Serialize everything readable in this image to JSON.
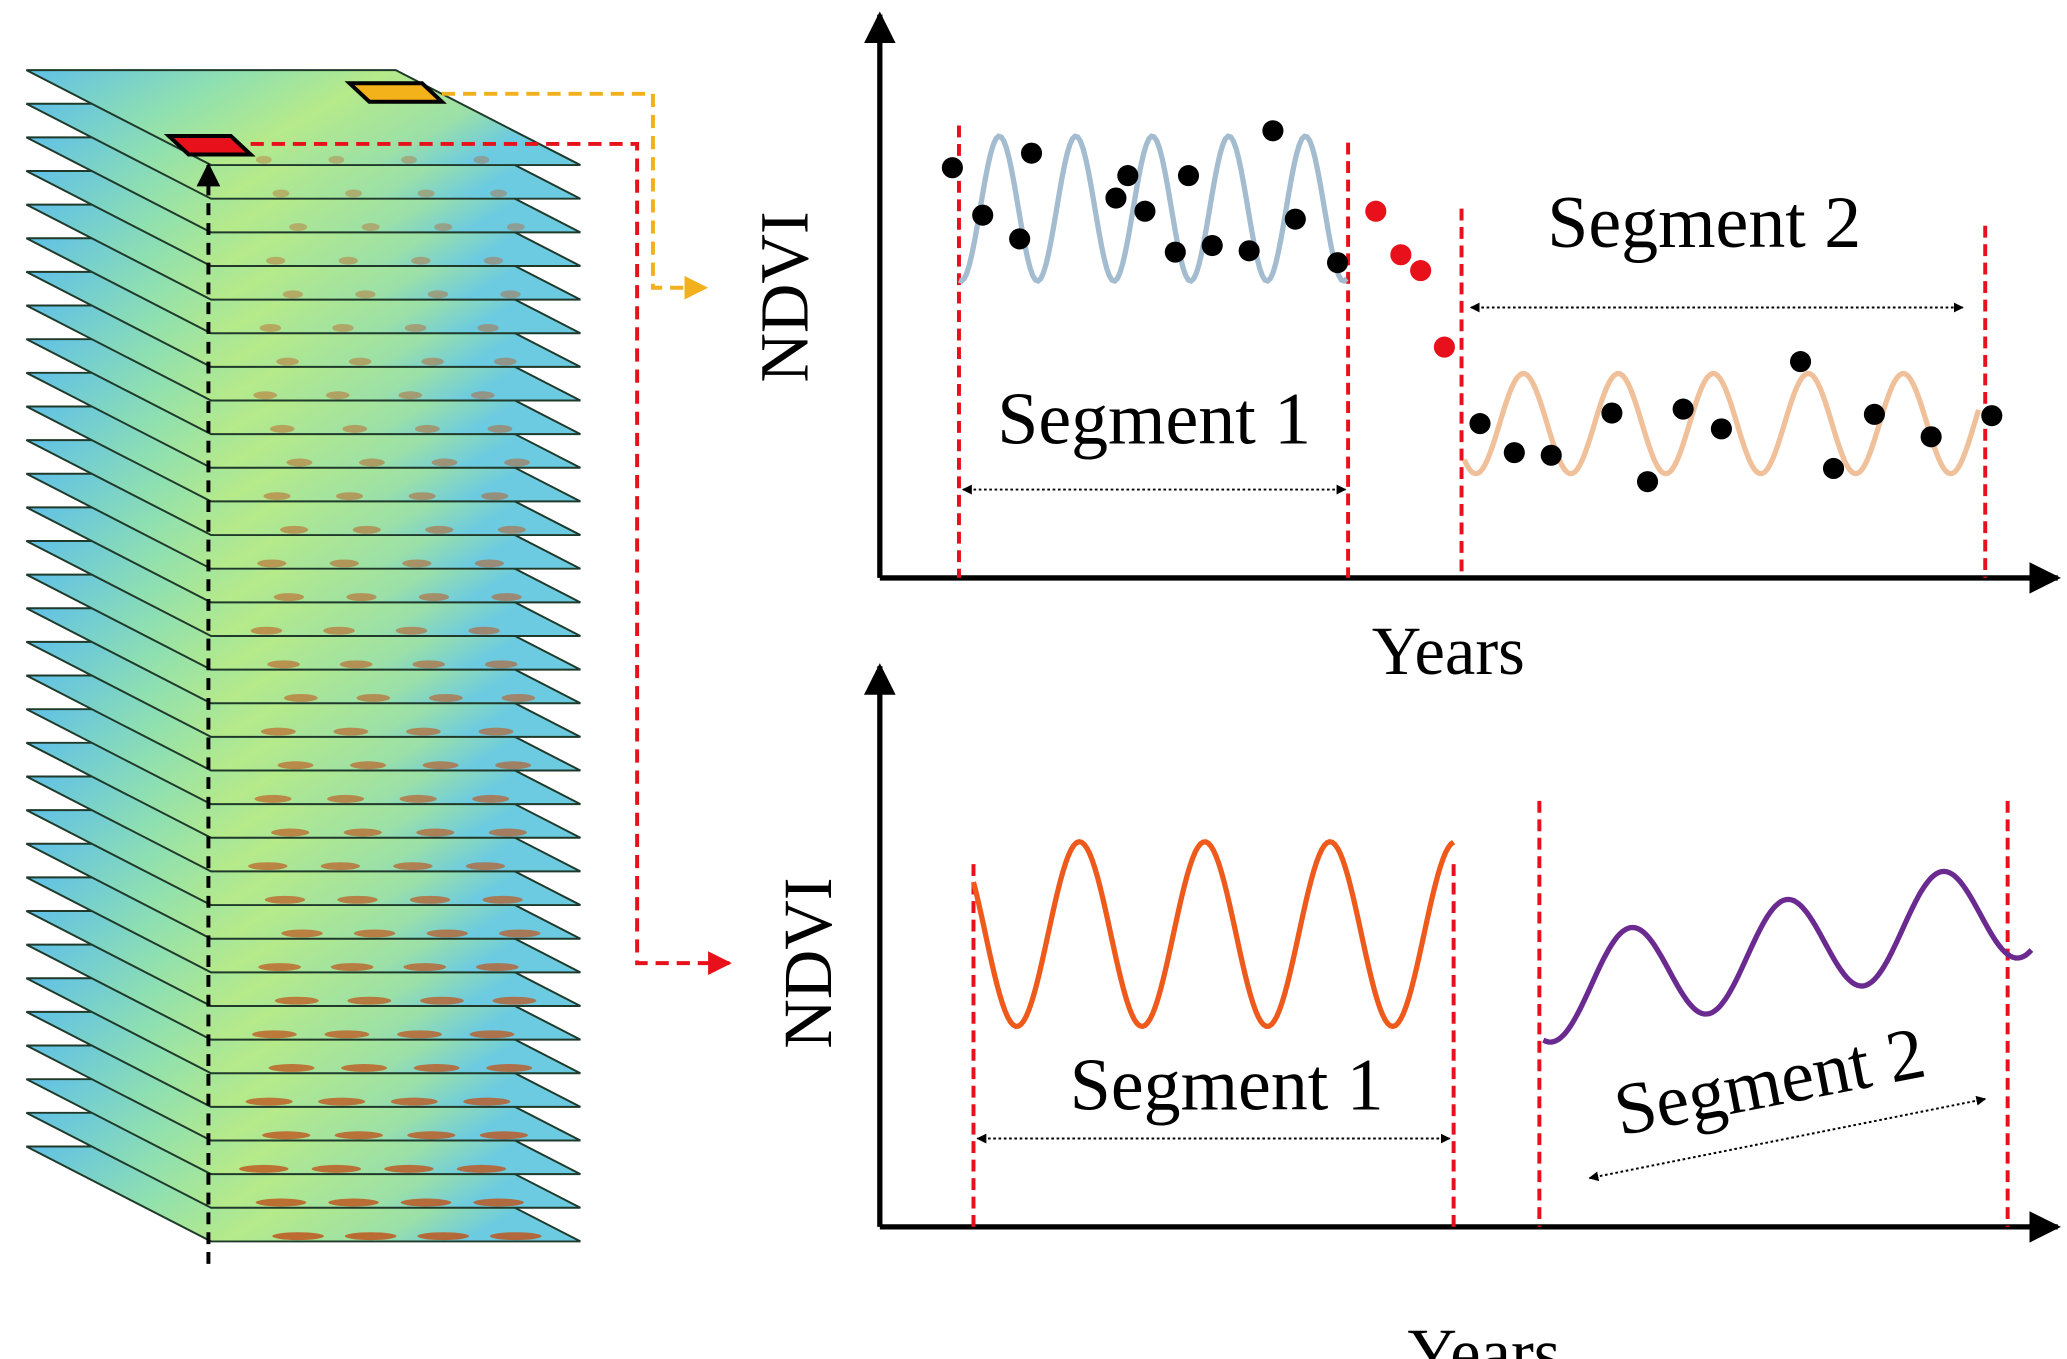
{
  "panels": [
    {
      "y_label": "NDVI",
      "x_label": "Years",
      "segments": [
        "Segment 1",
        "Segment 2"
      ]
    },
    {
      "y_label": "NDVI",
      "x_label": "Years",
      "segments": [
        "Segment 1",
        "Segment 2"
      ]
    }
  ]
}
